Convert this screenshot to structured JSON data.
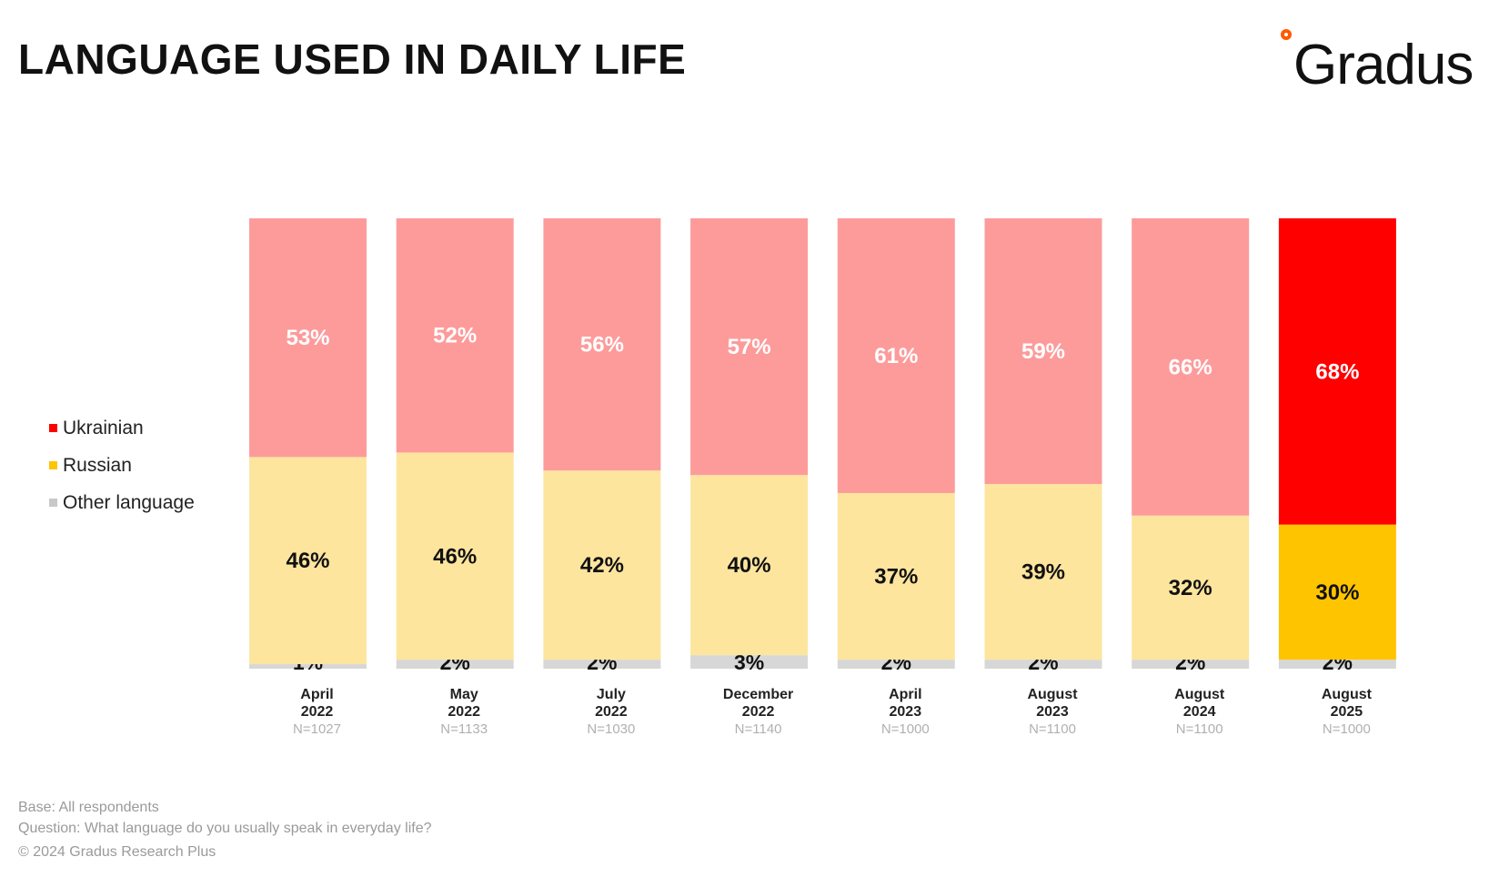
{
  "title": "LANGUAGE USED IN DAILY LIFE",
  "logo": {
    "text": "Gradus",
    "accent_color": "#ff5a00"
  },
  "legend": [
    {
      "label": "Ukrainian",
      "color": "#ff0000"
    },
    {
      "label": "Russian",
      "color": "#ffc400"
    },
    {
      "label": "Other language",
      "color": "#c8c8c8"
    }
  ],
  "chart_data": {
    "type": "bar",
    "stacked": true,
    "categories": [
      {
        "month": "April",
        "year": "2022",
        "n": "N=1027"
      },
      {
        "month": "May",
        "year": "2022",
        "n": "N=1133"
      },
      {
        "month": "July",
        "year": "2022",
        "n": "N=1030"
      },
      {
        "month": "December",
        "year": "2022",
        "n": "N=1140"
      },
      {
        "month": "April",
        "year": "2023",
        "n": "N=1000"
      },
      {
        "month": "August",
        "year": "2023",
        "n": "N=1100"
      },
      {
        "month": "August",
        "year": "2024",
        "n": "N=1100"
      },
      {
        "month": "August",
        "year": "2025",
        "n": "N=1000"
      }
    ],
    "series": [
      {
        "name": "Other language",
        "values": [
          1,
          2,
          2,
          3,
          2,
          2,
          2,
          2
        ],
        "labels": [
          "1%",
          "2%",
          "2%",
          "3%",
          "2%",
          "2%",
          "2%",
          "2%"
        ]
      },
      {
        "name": "Russian",
        "values": [
          46,
          46,
          42,
          40,
          37,
          39,
          32,
          30
        ],
        "labels": [
          "46%",
          "46%",
          "42%",
          "40%",
          "37%",
          "39%",
          "32%",
          "30%"
        ]
      },
      {
        "name": "Ukrainian",
        "values": [
          53,
          52,
          56,
          57,
          61,
          59,
          66,
          68
        ],
        "labels": [
          "53%",
          "52%",
          "56%",
          "57%",
          "61%",
          "59%",
          "66%",
          "68%"
        ]
      }
    ],
    "colors": {
      "ukrainian_muted": "#fd9b9b",
      "russian_muted": "#fde59e",
      "other_muted": "#d7d7d7",
      "ukrainian_highlight": "#ff0000",
      "russian_highlight": "#ffc400",
      "other_highlight": "#d7d7d7"
    },
    "highlight_index": 7,
    "ylim": [
      0,
      100
    ]
  },
  "footer": {
    "base": "Base: All respondents",
    "question": "Question: What language do you usually speak in everyday life?",
    "copyright": "© 2024 Gradus Research Plus"
  }
}
